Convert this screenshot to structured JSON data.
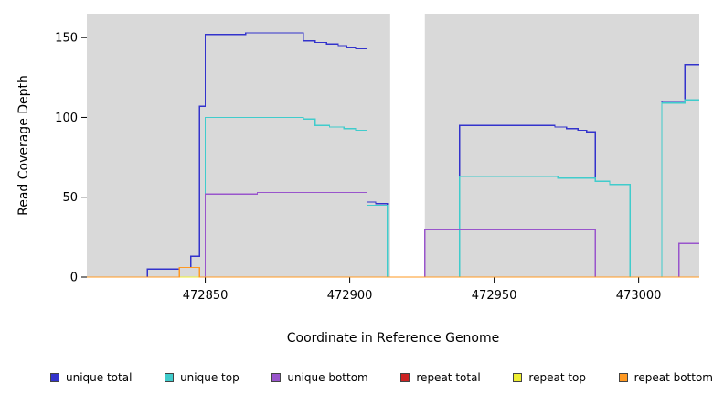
{
  "figure": {
    "background": "#ffffff",
    "plot_background": "#d9d9d9",
    "gap_band_color": "#ffffff"
  },
  "chart_data": {
    "type": "line",
    "step": true,
    "title": "",
    "xlabel": "Coordinate in Reference Genome",
    "ylabel": "Read Coverage Depth",
    "xlim": [
      472809,
      473021
    ],
    "ylim": [
      0,
      165
    ],
    "x_ticks": [
      472850,
      472900,
      472950,
      473000
    ],
    "y_ticks": [
      0,
      50,
      100,
      150
    ],
    "grid": false,
    "legend_position": "bottom",
    "gap_x_range": [
      472914,
      472926
    ],
    "series": [
      {
        "name": "unique total",
        "color": "#3333cc",
        "points": [
          [
            472809,
            0
          ],
          [
            472830,
            5
          ],
          [
            472841,
            6
          ],
          [
            472845,
            13
          ],
          [
            472848,
            107
          ],
          [
            472850,
            152
          ],
          [
            472864,
            153
          ],
          [
            472884,
            148
          ],
          [
            472888,
            147
          ],
          [
            472892,
            146
          ],
          [
            472896,
            145
          ],
          [
            472899,
            144
          ],
          [
            472902,
            143
          ],
          [
            472906,
            47
          ],
          [
            472909,
            46
          ],
          [
            472913,
            0
          ],
          [
            472926,
            30
          ],
          [
            472938,
            95
          ],
          [
            472971,
            94
          ],
          [
            472975,
            93
          ],
          [
            472979,
            92
          ],
          [
            472982,
            91
          ],
          [
            472985,
            60
          ],
          [
            472990,
            58
          ],
          [
            472997,
            0
          ],
          [
            473008,
            110
          ],
          [
            473016,
            133
          ]
        ]
      },
      {
        "name": "unique top",
        "color": "#40cccc",
        "points": [
          [
            472809,
            0
          ],
          [
            472850,
            100
          ],
          [
            472884,
            99
          ],
          [
            472888,
            95
          ],
          [
            472893,
            94
          ],
          [
            472898,
            93
          ],
          [
            472902,
            92
          ],
          [
            472906,
            45
          ],
          [
            472913,
            0
          ],
          [
            472938,
            63
          ],
          [
            472972,
            62
          ],
          [
            472985,
            60
          ],
          [
            472990,
            58
          ],
          [
            472997,
            0
          ],
          [
            473008,
            109
          ],
          [
            473016,
            111
          ]
        ]
      },
      {
        "name": "unique bottom",
        "color": "#9955cc",
        "points": [
          [
            472809,
            0
          ],
          [
            472850,
            52
          ],
          [
            472868,
            53
          ],
          [
            472906,
            0
          ],
          [
            472926,
            30
          ],
          [
            472985,
            0
          ],
          [
            473014,
            21
          ]
        ]
      },
      {
        "name": "repeat total",
        "color": "#cc2222",
        "points": [
          [
            472809,
            0
          ]
        ]
      },
      {
        "name": "repeat top",
        "color": "#eeee33",
        "points": [
          [
            472809,
            0
          ]
        ]
      },
      {
        "name": "repeat bottom",
        "color": "#ff9922",
        "points": [
          [
            472809,
            0
          ],
          [
            472841,
            6
          ],
          [
            472848,
            0
          ]
        ]
      }
    ]
  }
}
